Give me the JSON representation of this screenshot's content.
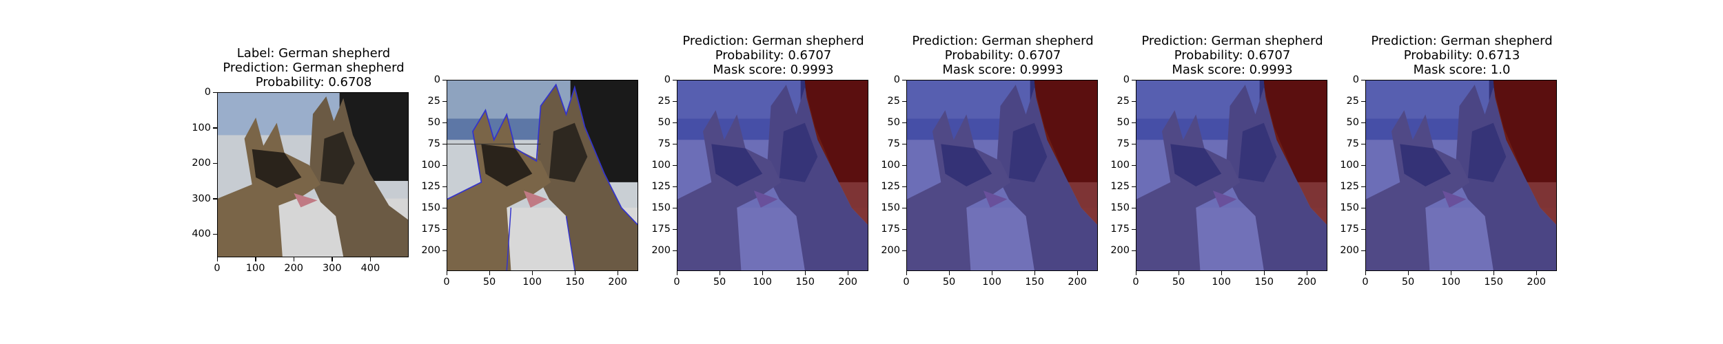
{
  "panels": [
    {
      "title_lines": [
        "Label: German shepherd",
        "Prediction: German shepherd",
        "Probability: 0.6708"
      ],
      "kind": "original",
      "xticks": [
        "0",
        "100",
        "200",
        "300",
        "400"
      ],
      "yticks": [
        "0",
        "100",
        "200",
        "300",
        "400"
      ],
      "x_range": [
        0,
        500
      ],
      "y_range": [
        0,
        465
      ]
    },
    {
      "title_lines": [],
      "kind": "contour",
      "xticks": [
        "0",
        "50",
        "100",
        "150",
        "200"
      ],
      "yticks": [
        "0",
        "25",
        "50",
        "75",
        "100",
        "125",
        "150",
        "175",
        "200"
      ],
      "x_range": [
        0,
        224
      ],
      "y_range": [
        0,
        224
      ]
    },
    {
      "title_lines": [
        "Prediction: German shepherd",
        "Probability: 0.6707",
        "Mask score: 0.9993"
      ],
      "kind": "mask",
      "xticks": [
        "0",
        "50",
        "100",
        "150",
        "200"
      ],
      "yticks": [
        "0",
        "25",
        "50",
        "75",
        "100",
        "125",
        "150",
        "175",
        "200"
      ],
      "x_range": [
        0,
        224
      ],
      "y_range": [
        0,
        224
      ]
    },
    {
      "title_lines": [
        "Prediction: German shepherd",
        "Probability: 0.6707",
        "Mask score: 0.9993"
      ],
      "kind": "mask",
      "xticks": [
        "0",
        "50",
        "100",
        "150",
        "200"
      ],
      "yticks": [
        "0",
        "25",
        "50",
        "75",
        "100",
        "125",
        "150",
        "175",
        "200"
      ],
      "x_range": [
        0,
        224
      ],
      "y_range": [
        0,
        224
      ]
    },
    {
      "title_lines": [
        "Prediction: German shepherd",
        "Probability: 0.6707",
        "Mask score: 0.9993"
      ],
      "kind": "mask",
      "xticks": [
        "0",
        "50",
        "100",
        "150",
        "200"
      ],
      "yticks": [
        "0",
        "25",
        "50",
        "75",
        "100",
        "125",
        "150",
        "175",
        "200"
      ],
      "x_range": [
        0,
        224
      ],
      "y_range": [
        0,
        224
      ]
    },
    {
      "title_lines": [
        "Prediction: German shepherd",
        "Probability: 0.6713",
        "Mask score: 1.0"
      ],
      "kind": "mask",
      "xticks": [
        "0",
        "50",
        "100",
        "150",
        "200"
      ],
      "yticks": [
        "0",
        "25",
        "50",
        "75",
        "100",
        "125",
        "150",
        "175",
        "200"
      ],
      "x_range": [
        0,
        224
      ],
      "y_range": [
        0,
        224
      ]
    }
  ],
  "colors": {
    "mask_blue": "#3a3aa8",
    "mask_red": "#6b0d0d",
    "contour": "#3333cc"
  }
}
